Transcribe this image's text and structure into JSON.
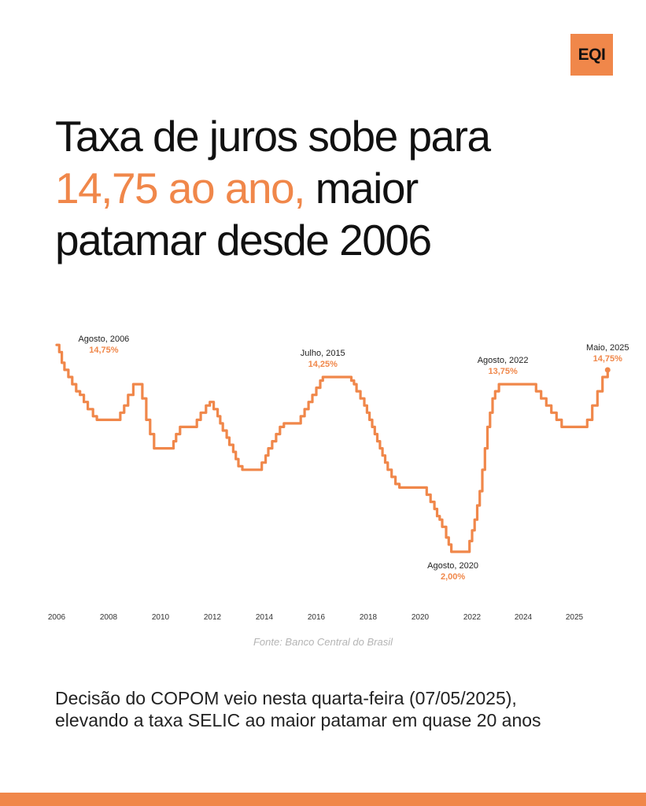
{
  "brand": {
    "logo_text": "EQI",
    "accent_color": "#f0874a"
  },
  "headline": {
    "line1": "Taxa de juros sobe para",
    "highlight": "14,75 ao ano,",
    "line2_rest": " maior",
    "line3": "patamar desde 2006"
  },
  "chart_data": {
    "type": "line",
    "step": true,
    "x_ticks": [
      "2006",
      "2008",
      "2010",
      "2012",
      "2014",
      "2016",
      "2018",
      "2020",
      "2022",
      "2024",
      "2025"
    ],
    "ylim": [
      0,
      16.5
    ],
    "grid": false,
    "series": [
      {
        "color": "#f0874a",
        "points": [
          [
            2006.0,
            16.5
          ],
          [
            2006.1,
            16.0
          ],
          [
            2006.2,
            15.25
          ],
          [
            2006.3,
            14.75
          ],
          [
            2006.45,
            14.25
          ],
          [
            2006.6,
            13.75
          ],
          [
            2006.75,
            13.25
          ],
          [
            2006.9,
            13.0
          ],
          [
            2007.05,
            12.5
          ],
          [
            2007.2,
            12.0
          ],
          [
            2007.4,
            11.5
          ],
          [
            2007.55,
            11.25
          ],
          [
            2007.75,
            11.25
          ],
          [
            2008.3,
            11.25
          ],
          [
            2008.45,
            11.75
          ],
          [
            2008.6,
            12.25
          ],
          [
            2008.75,
            13.0
          ],
          [
            2008.95,
            13.75
          ],
          [
            2009.15,
            13.75
          ],
          [
            2009.3,
            12.75
          ],
          [
            2009.45,
            11.25
          ],
          [
            2009.6,
            10.25
          ],
          [
            2009.75,
            9.25
          ],
          [
            2010.35,
            9.25
          ],
          [
            2010.5,
            9.75
          ],
          [
            2010.6,
            10.25
          ],
          [
            2010.75,
            10.75
          ],
          [
            2011.25,
            10.75
          ],
          [
            2011.4,
            11.25
          ],
          [
            2011.55,
            11.75
          ],
          [
            2011.75,
            12.25
          ],
          [
            2011.9,
            12.5
          ],
          [
            2012.05,
            12.0
          ],
          [
            2012.2,
            11.5
          ],
          [
            2012.3,
            11.0
          ],
          [
            2012.4,
            10.5
          ],
          [
            2012.55,
            10.0
          ],
          [
            2012.65,
            9.5
          ],
          [
            2012.8,
            9.0
          ],
          [
            2012.9,
            8.5
          ],
          [
            2013.0,
            8.0
          ],
          [
            2013.15,
            7.75
          ],
          [
            2013.75,
            7.75
          ],
          [
            2013.9,
            8.25
          ],
          [
            2014.05,
            8.75
          ],
          [
            2014.15,
            9.25
          ],
          [
            2014.3,
            9.75
          ],
          [
            2014.45,
            10.25
          ],
          [
            2014.6,
            10.75
          ],
          [
            2014.75,
            11.0
          ],
          [
            2015.25,
            11.0
          ],
          [
            2015.4,
            11.5
          ],
          [
            2015.55,
            12.0
          ],
          [
            2015.7,
            12.5
          ],
          [
            2015.85,
            13.0
          ],
          [
            2016.0,
            13.5
          ],
          [
            2016.15,
            14.0
          ],
          [
            2016.25,
            14.25
          ],
          [
            2017.2,
            14.25
          ],
          [
            2017.35,
            14.0
          ],
          [
            2017.45,
            13.75
          ],
          [
            2017.55,
            13.25
          ],
          [
            2017.7,
            12.75
          ],
          [
            2017.85,
            12.25
          ],
          [
            2017.95,
            11.75
          ],
          [
            2018.05,
            11.25
          ],
          [
            2018.15,
            10.75
          ],
          [
            2018.25,
            10.25
          ],
          [
            2018.35,
            9.75
          ],
          [
            2018.45,
            9.25
          ],
          [
            2018.55,
            8.75
          ],
          [
            2018.65,
            8.25
          ],
          [
            2018.75,
            7.75
          ],
          [
            2018.9,
            7.25
          ],
          [
            2019.05,
            6.75
          ],
          [
            2019.2,
            6.5
          ],
          [
            2020.15,
            6.5
          ],
          [
            2020.25,
            6.0
          ],
          [
            2020.4,
            5.5
          ],
          [
            2020.55,
            5.0
          ],
          [
            2020.65,
            4.5
          ],
          [
            2020.75,
            4.25
          ],
          [
            2020.85,
            3.75
          ],
          [
            2021.0,
            3.0
          ],
          [
            2021.1,
            2.5
          ],
          [
            2021.2,
            2.0
          ],
          [
            2021.8,
            2.0
          ],
          [
            2021.9,
            2.75
          ],
          [
            2022.0,
            3.5
          ],
          [
            2022.1,
            4.25
          ],
          [
            2022.2,
            5.25
          ],
          [
            2022.3,
            6.25
          ],
          [
            2022.4,
            7.75
          ],
          [
            2022.5,
            9.25
          ],
          [
            2022.6,
            10.75
          ],
          [
            2022.7,
            11.75
          ],
          [
            2022.8,
            12.75
          ],
          [
            2022.9,
            13.25
          ],
          [
            2023.05,
            13.75
          ],
          [
            2024.15,
            13.75
          ],
          [
            2024.25,
            13.25
          ],
          [
            2024.35,
            12.75
          ],
          [
            2024.45,
            12.25
          ],
          [
            2024.55,
            11.75
          ],
          [
            2024.65,
            11.25
          ],
          [
            2024.75,
            10.75
          ],
          [
            2025.15,
            10.75
          ],
          [
            2025.25,
            11.25
          ],
          [
            2025.35,
            12.25
          ],
          [
            2025.45,
            13.25
          ],
          [
            2025.55,
            14.25
          ],
          [
            2025.65,
            14.75
          ]
        ]
      }
    ],
    "annotations": [
      {
        "date": "Agosto, 2006",
        "value": "14,75%",
        "x": 2006.3,
        "y": 14.75
      },
      {
        "date": "Julho, 2015",
        "value": "14,25%",
        "x": 2016.25,
        "y": 14.25
      },
      {
        "date": "Agosto, 2020",
        "value": "2,00%",
        "x": 2021.2,
        "y": 2.0
      },
      {
        "date": "Agosto, 2022",
        "value": "13,75%",
        "x": 2023.05,
        "y": 13.75
      },
      {
        "date": "Maio, 2025",
        "value": "14,75%",
        "x": 2025.65,
        "y": 14.75
      }
    ]
  },
  "source": "Fonte: Banco Central do Brasil",
  "caption": "Decisão do COPOM veio nesta quarta-feira (07/05/2025), elevando a taxa SELIC ao maior patamar em quase 20 anos"
}
